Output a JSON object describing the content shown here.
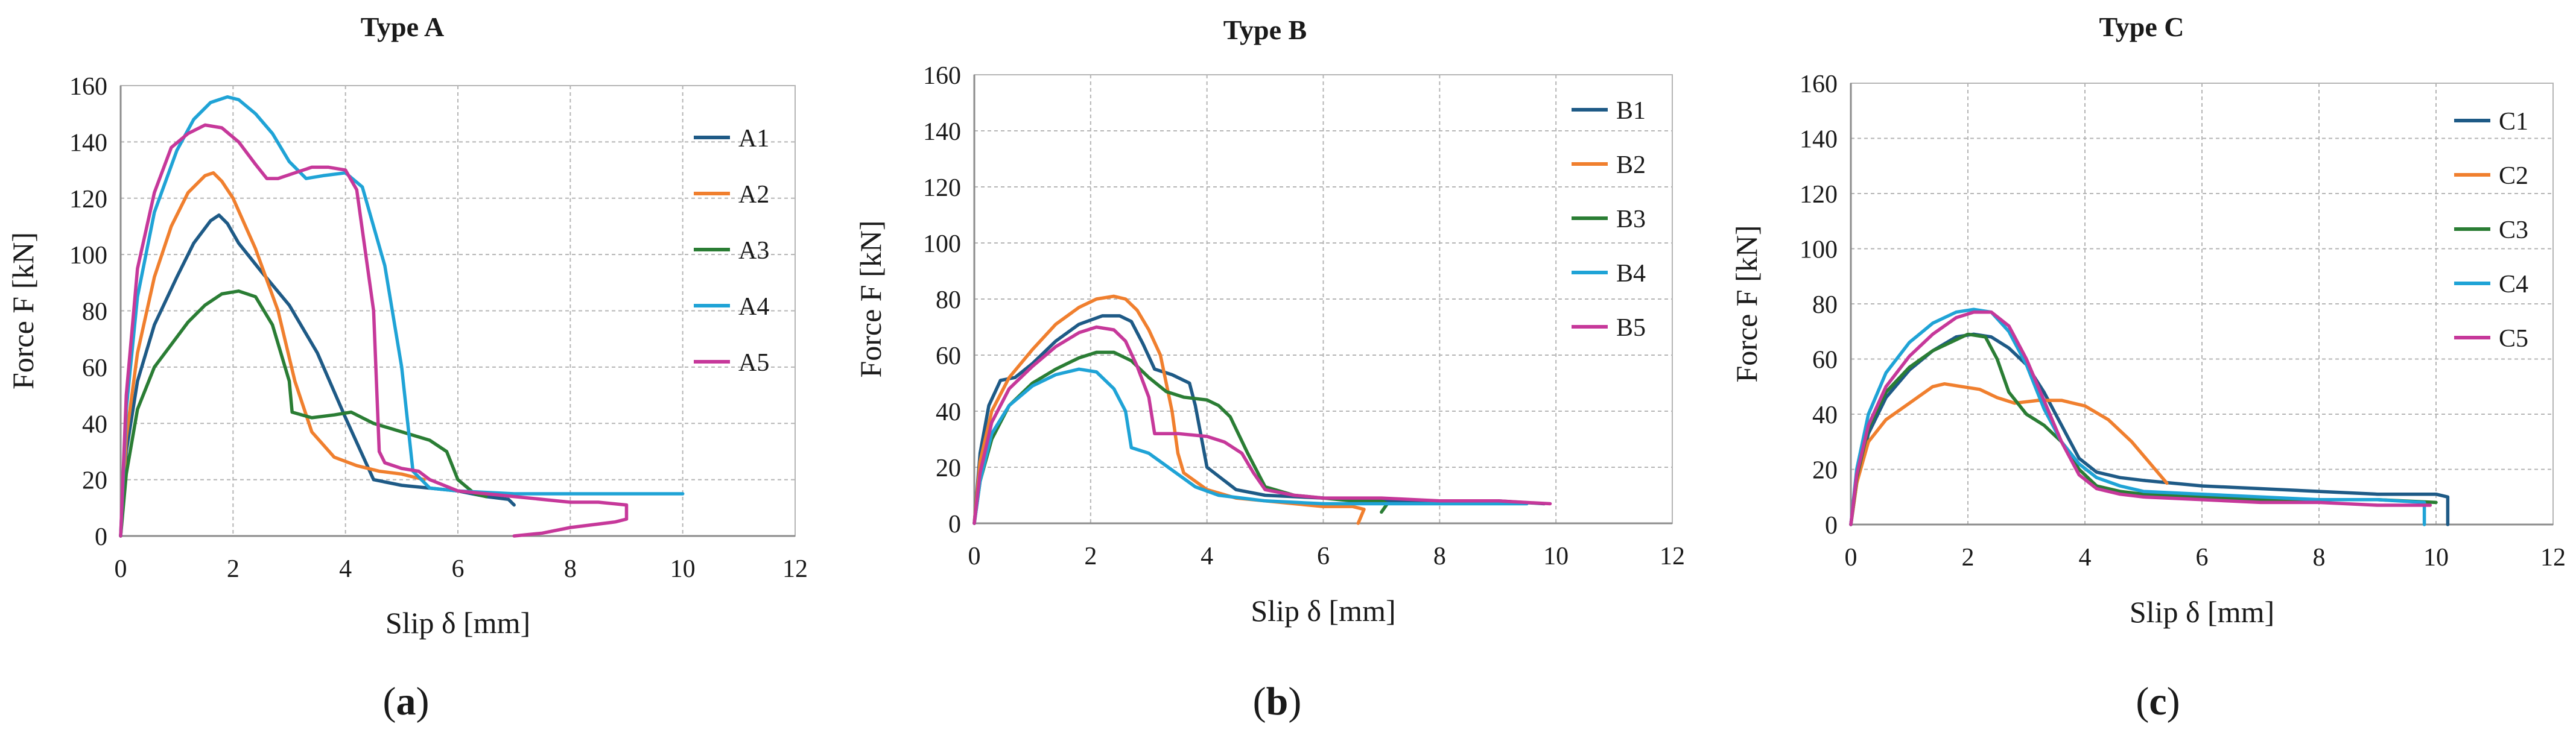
{
  "colors": {
    "grid": "#b5b5b5",
    "axis": "#8c8c8c",
    "text": "#1a1a1a",
    "series": [
      "#1e5a86",
      "#f07f2e",
      "#2a7d34",
      "#1fa3d6",
      "#c6389a"
    ]
  },
  "chart_data": [
    {
      "type": "line",
      "title": "Type A",
      "xlabel": "Slip δ [mm]",
      "ylabel": "Force F [kN]",
      "caption_letter": "a",
      "xlim": [
        0,
        12
      ],
      "ylim": [
        0,
        160
      ],
      "xticks": [
        0,
        2,
        4,
        6,
        8,
        10,
        12
      ],
      "yticks": [
        0,
        20,
        40,
        60,
        80,
        100,
        120,
        140,
        160
      ],
      "grid": true,
      "legend_position": "right",
      "series": [
        {
          "name": "A1",
          "x": [
            0,
            0.1,
            0.3,
            0.6,
            1.0,
            1.3,
            1.6,
            1.75,
            1.9,
            2.1,
            2.5,
            3.0,
            3.5,
            4.0,
            4.5,
            5.0,
            5.5,
            6.0,
            6.5,
            6.9,
            7.0
          ],
          "y": [
            0,
            30,
            55,
            75,
            92,
            104,
            112,
            114,
            111,
            104,
            94,
            82,
            65,
            42,
            20,
            18,
            17,
            16,
            14,
            13,
            11
          ]
        },
        {
          "name": "A2",
          "x": [
            0,
            0.1,
            0.3,
            0.6,
            0.9,
            1.2,
            1.5,
            1.65,
            1.8,
            2.0,
            2.4,
            2.8,
            3.1,
            3.4,
            3.8,
            4.2,
            4.6,
            5.0,
            5.2,
            5.4
          ],
          "y": [
            0,
            35,
            65,
            92,
            110,
            122,
            128,
            129,
            126,
            120,
            102,
            80,
            55,
            37,
            28,
            25,
            23,
            22,
            21,
            20
          ]
        },
        {
          "name": "A3",
          "x": [
            0,
            0.1,
            0.3,
            0.6,
            0.9,
            1.2,
            1.5,
            1.8,
            2.1,
            2.4,
            2.7,
            3.0,
            3.05,
            3.4,
            3.8,
            4.1,
            4.5,
            5.0,
            5.5,
            5.8,
            6.0,
            6.3,
            6.5
          ],
          "y": [
            0,
            22,
            45,
            60,
            68,
            76,
            82,
            86,
            87,
            85,
            75,
            55,
            44,
            42,
            43,
            44,
            40,
            37,
            34,
            30,
            20,
            15,
            14
          ]
        },
        {
          "name": "A4",
          "x": [
            0,
            0.1,
            0.3,
            0.6,
            1.0,
            1.3,
            1.6,
            1.9,
            2.1,
            2.4,
            2.7,
            3.0,
            3.3,
            3.6,
            4.0,
            4.3,
            4.7,
            5.0,
            5.2,
            5.5,
            6.0,
            7.0,
            8.0,
            9.0,
            10.0
          ],
          "y": [
            0,
            45,
            85,
            115,
            137,
            148,
            154,
            156,
            155,
            150,
            143,
            133,
            127,
            128,
            129,
            124,
            96,
            60,
            23,
            17,
            16,
            15,
            15,
            15,
            15
          ]
        },
        {
          "name": "A5",
          "x": [
            0,
            0.1,
            0.3,
            0.6,
            0.9,
            1.2,
            1.5,
            1.8,
            2.1,
            2.4,
            2.6,
            2.8,
            3.1,
            3.4,
            3.7,
            4.0,
            4.2,
            4.5,
            4.6,
            4.7,
            5.0,
            5.3,
            5.5,
            6.0,
            7.0,
            8.0,
            8.5,
            9.0,
            9.0,
            8.8,
            8.0,
            7.5,
            7.0
          ],
          "y": [
            0,
            50,
            95,
            122,
            138,
            143,
            146,
            145,
            140,
            132,
            127,
            127,
            129,
            131,
            131,
            130,
            123,
            80,
            30,
            26,
            24,
            23,
            20,
            16,
            14,
            12,
            12,
            11,
            6,
            5,
            3,
            1,
            0
          ]
        }
      ]
    },
    {
      "type": "line",
      "title": "Type B",
      "xlabel": "Slip δ [mm]",
      "ylabel": "Force F [kN]",
      "caption_letter": "b",
      "xlim": [
        0,
        12
      ],
      "ylim": [
        0,
        160
      ],
      "xticks": [
        0,
        2,
        4,
        6,
        8,
        10,
        12
      ],
      "yticks": [
        0,
        20,
        40,
        60,
        80,
        100,
        120,
        140,
        160
      ],
      "grid": true,
      "legend_position": "right",
      "series": [
        {
          "name": "B1",
          "x": [
            0,
            0.1,
            0.25,
            0.45,
            0.7,
            1.0,
            1.4,
            1.8,
            2.2,
            2.5,
            2.7,
            2.9,
            3.1,
            3.4,
            3.7,
            3.8,
            4.0,
            4.5,
            5.0,
            6.0,
            7.0,
            8.0,
            9.0,
            9.8
          ],
          "y": [
            0,
            25,
            42,
            51,
            52,
            57,
            65,
            71,
            74,
            74,
            72,
            64,
            55,
            53,
            50,
            42,
            20,
            12,
            10,
            9,
            8,
            8,
            8,
            7
          ]
        },
        {
          "name": "B2",
          "x": [
            0,
            0.1,
            0.3,
            0.6,
            1.0,
            1.4,
            1.8,
            2.1,
            2.4,
            2.6,
            2.8,
            3.0,
            3.2,
            3.4,
            3.5,
            3.6,
            4.0,
            4.5,
            5.0,
            5.5,
            6.0,
            6.5,
            6.7,
            6.6
          ],
          "y": [
            0,
            22,
            40,
            52,
            62,
            71,
            77,
            80,
            81,
            80,
            76,
            69,
            60,
            40,
            25,
            18,
            12,
            9,
            8,
            7,
            6,
            6,
            5,
            0
          ]
        },
        {
          "name": "B3",
          "x": [
            0,
            0.1,
            0.3,
            0.6,
            1.0,
            1.4,
            1.8,
            2.1,
            2.4,
            2.7,
            3.0,
            3.3,
            3.6,
            4.0,
            4.2,
            4.4,
            4.7,
            5.0,
            5.5,
            6.0,
            6.5,
            7.0,
            7.1,
            7.0
          ],
          "y": [
            0,
            15,
            30,
            42,
            50,
            55,
            59,
            61,
            61,
            58,
            52,
            47,
            45,
            44,
            42,
            38,
            25,
            13,
            10,
            9,
            8,
            8,
            7,
            4
          ]
        },
        {
          "name": "B4",
          "x": [
            0,
            0.1,
            0.3,
            0.6,
            1.0,
            1.4,
            1.8,
            2.1,
            2.4,
            2.6,
            2.7,
            3.0,
            3.4,
            3.8,
            4.2,
            4.6,
            5.0,
            6.0,
            7.0,
            8.0,
            9.0,
            9.5
          ],
          "y": [
            0,
            15,
            32,
            42,
            49,
            53,
            55,
            54,
            48,
            40,
            27,
            25,
            19,
            13,
            10,
            9,
            8,
            7,
            7,
            7,
            7,
            7
          ]
        },
        {
          "name": "B5",
          "x": [
            0,
            0.1,
            0.3,
            0.6,
            1.0,
            1.4,
            1.8,
            2.1,
            2.4,
            2.6,
            2.8,
            3.0,
            3.1,
            3.5,
            4.0,
            4.3,
            4.6,
            4.8,
            5.0,
            5.5,
            6.0,
            7.0,
            8.0,
            9.0,
            9.9
          ],
          "y": [
            0,
            18,
            36,
            48,
            56,
            63,
            68,
            70,
            69,
            65,
            56,
            45,
            32,
            32,
            31,
            29,
            25,
            18,
            12,
            10,
            9,
            9,
            8,
            8,
            7
          ]
        }
      ]
    },
    {
      "type": "line",
      "title": "Type C",
      "xlabel": "Slip δ [mm]",
      "ylabel": "Force F [kN]",
      "caption_letter": "c",
      "xlim": [
        0,
        12
      ],
      "ylim": [
        0,
        160
      ],
      "xticks": [
        0,
        2,
        4,
        6,
        8,
        10,
        12
      ],
      "yticks": [
        0,
        20,
        40,
        60,
        80,
        100,
        120,
        140,
        160
      ],
      "grid": true,
      "legend_position": "right",
      "series": [
        {
          "name": "C1",
          "x": [
            0,
            0.1,
            0.3,
            0.6,
            1.0,
            1.4,
            1.8,
            2.1,
            2.4,
            2.7,
            3.0,
            3.3,
            3.6,
            3.9,
            4.2,
            4.6,
            5.0,
            6.0,
            7.0,
            8.0,
            9.0,
            10.0,
            10.2,
            10.2
          ],
          "y": [
            0,
            15,
            33,
            46,
            56,
            63,
            68,
            69,
            68,
            64,
            58,
            48,
            36,
            24,
            19,
            17,
            16,
            14,
            13,
            12,
            11,
            11,
            10,
            0
          ]
        },
        {
          "name": "C2",
          "x": [
            0,
            0.1,
            0.3,
            0.6,
            1.0,
            1.4,
            1.6,
            1.9,
            2.2,
            2.5,
            2.8,
            3.2,
            3.6,
            4.0,
            4.4,
            4.8,
            5.2,
            5.4
          ],
          "y": [
            0,
            15,
            30,
            38,
            44,
            50,
            51,
            50,
            49,
            46,
            44,
            45,
            45,
            43,
            38,
            30,
            20,
            15
          ]
        },
        {
          "name": "C3",
          "x": [
            0,
            0.1,
            0.3,
            0.6,
            1.0,
            1.4,
            1.8,
            2.0,
            2.3,
            2.5,
            2.7,
            3.0,
            3.3,
            3.6,
            3.9,
            4.2,
            4.6,
            5.0,
            6.0,
            7.0,
            8.0,
            9.0,
            10.0
          ],
          "y": [
            0,
            17,
            35,
            48,
            57,
            63,
            67,
            69,
            68,
            60,
            48,
            40,
            36,
            30,
            20,
            14,
            12,
            11,
            10,
            9,
            9,
            9,
            8
          ]
        },
        {
          "name": "C4",
          "x": [
            0,
            0.1,
            0.3,
            0.6,
            1.0,
            1.4,
            1.8,
            2.1,
            2.4,
            2.7,
            3.0,
            3.3,
            3.6,
            3.9,
            4.2,
            4.6,
            5.0,
            6.0,
            7.0,
            8.0,
            9.0,
            9.8,
            9.8
          ],
          "y": [
            0,
            20,
            40,
            55,
            66,
            73,
            77,
            78,
            77,
            70,
            58,
            42,
            30,
            22,
            17,
            14,
            12,
            11,
            10,
            9,
            9,
            8,
            0
          ]
        },
        {
          "name": "C5",
          "x": [
            0,
            0.1,
            0.3,
            0.6,
            1.0,
            1.4,
            1.8,
            2.1,
            2.4,
            2.7,
            3.0,
            3.3,
            3.6,
            3.9,
            4.2,
            4.6,
            5.0,
            6.0,
            7.0,
            8.0,
            9.0,
            9.9
          ],
          "y": [
            0,
            18,
            36,
            50,
            61,
            69,
            75,
            77,
            77,
            72,
            60,
            45,
            30,
            18,
            13,
            11,
            10,
            9,
            8,
            8,
            7,
            7
          ]
        }
      ]
    }
  ]
}
